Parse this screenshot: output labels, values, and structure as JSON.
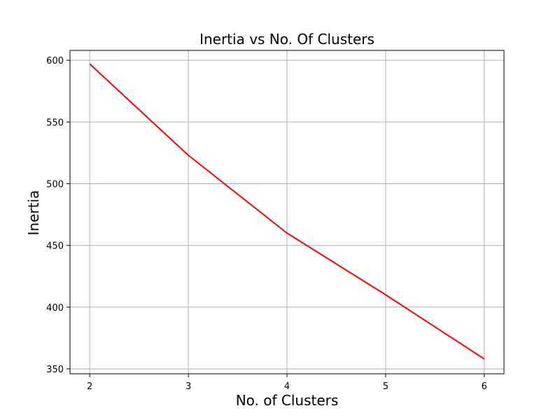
{
  "chart_data": {
    "type": "line",
    "title": "Inertia vs No. Of Clusters",
    "xlabel": "No. of Clusters",
    "ylabel": "Inertia",
    "x": [
      2,
      3,
      4,
      5,
      6
    ],
    "series": [
      {
        "values": [
          597,
          523,
          460,
          410,
          358
        ],
        "color": "#ff0000"
      }
    ],
    "xticks": [
      2,
      3,
      4,
      5,
      6
    ],
    "yticks": [
      350,
      400,
      450,
      500,
      550,
      600
    ],
    "xlim": [
      1.8,
      6.2
    ],
    "ylim": [
      346,
      608
    ],
    "grid": true,
    "colors": {
      "line": "#ff0000",
      "grid": "#b0b0b0",
      "axes": "#000000"
    }
  }
}
